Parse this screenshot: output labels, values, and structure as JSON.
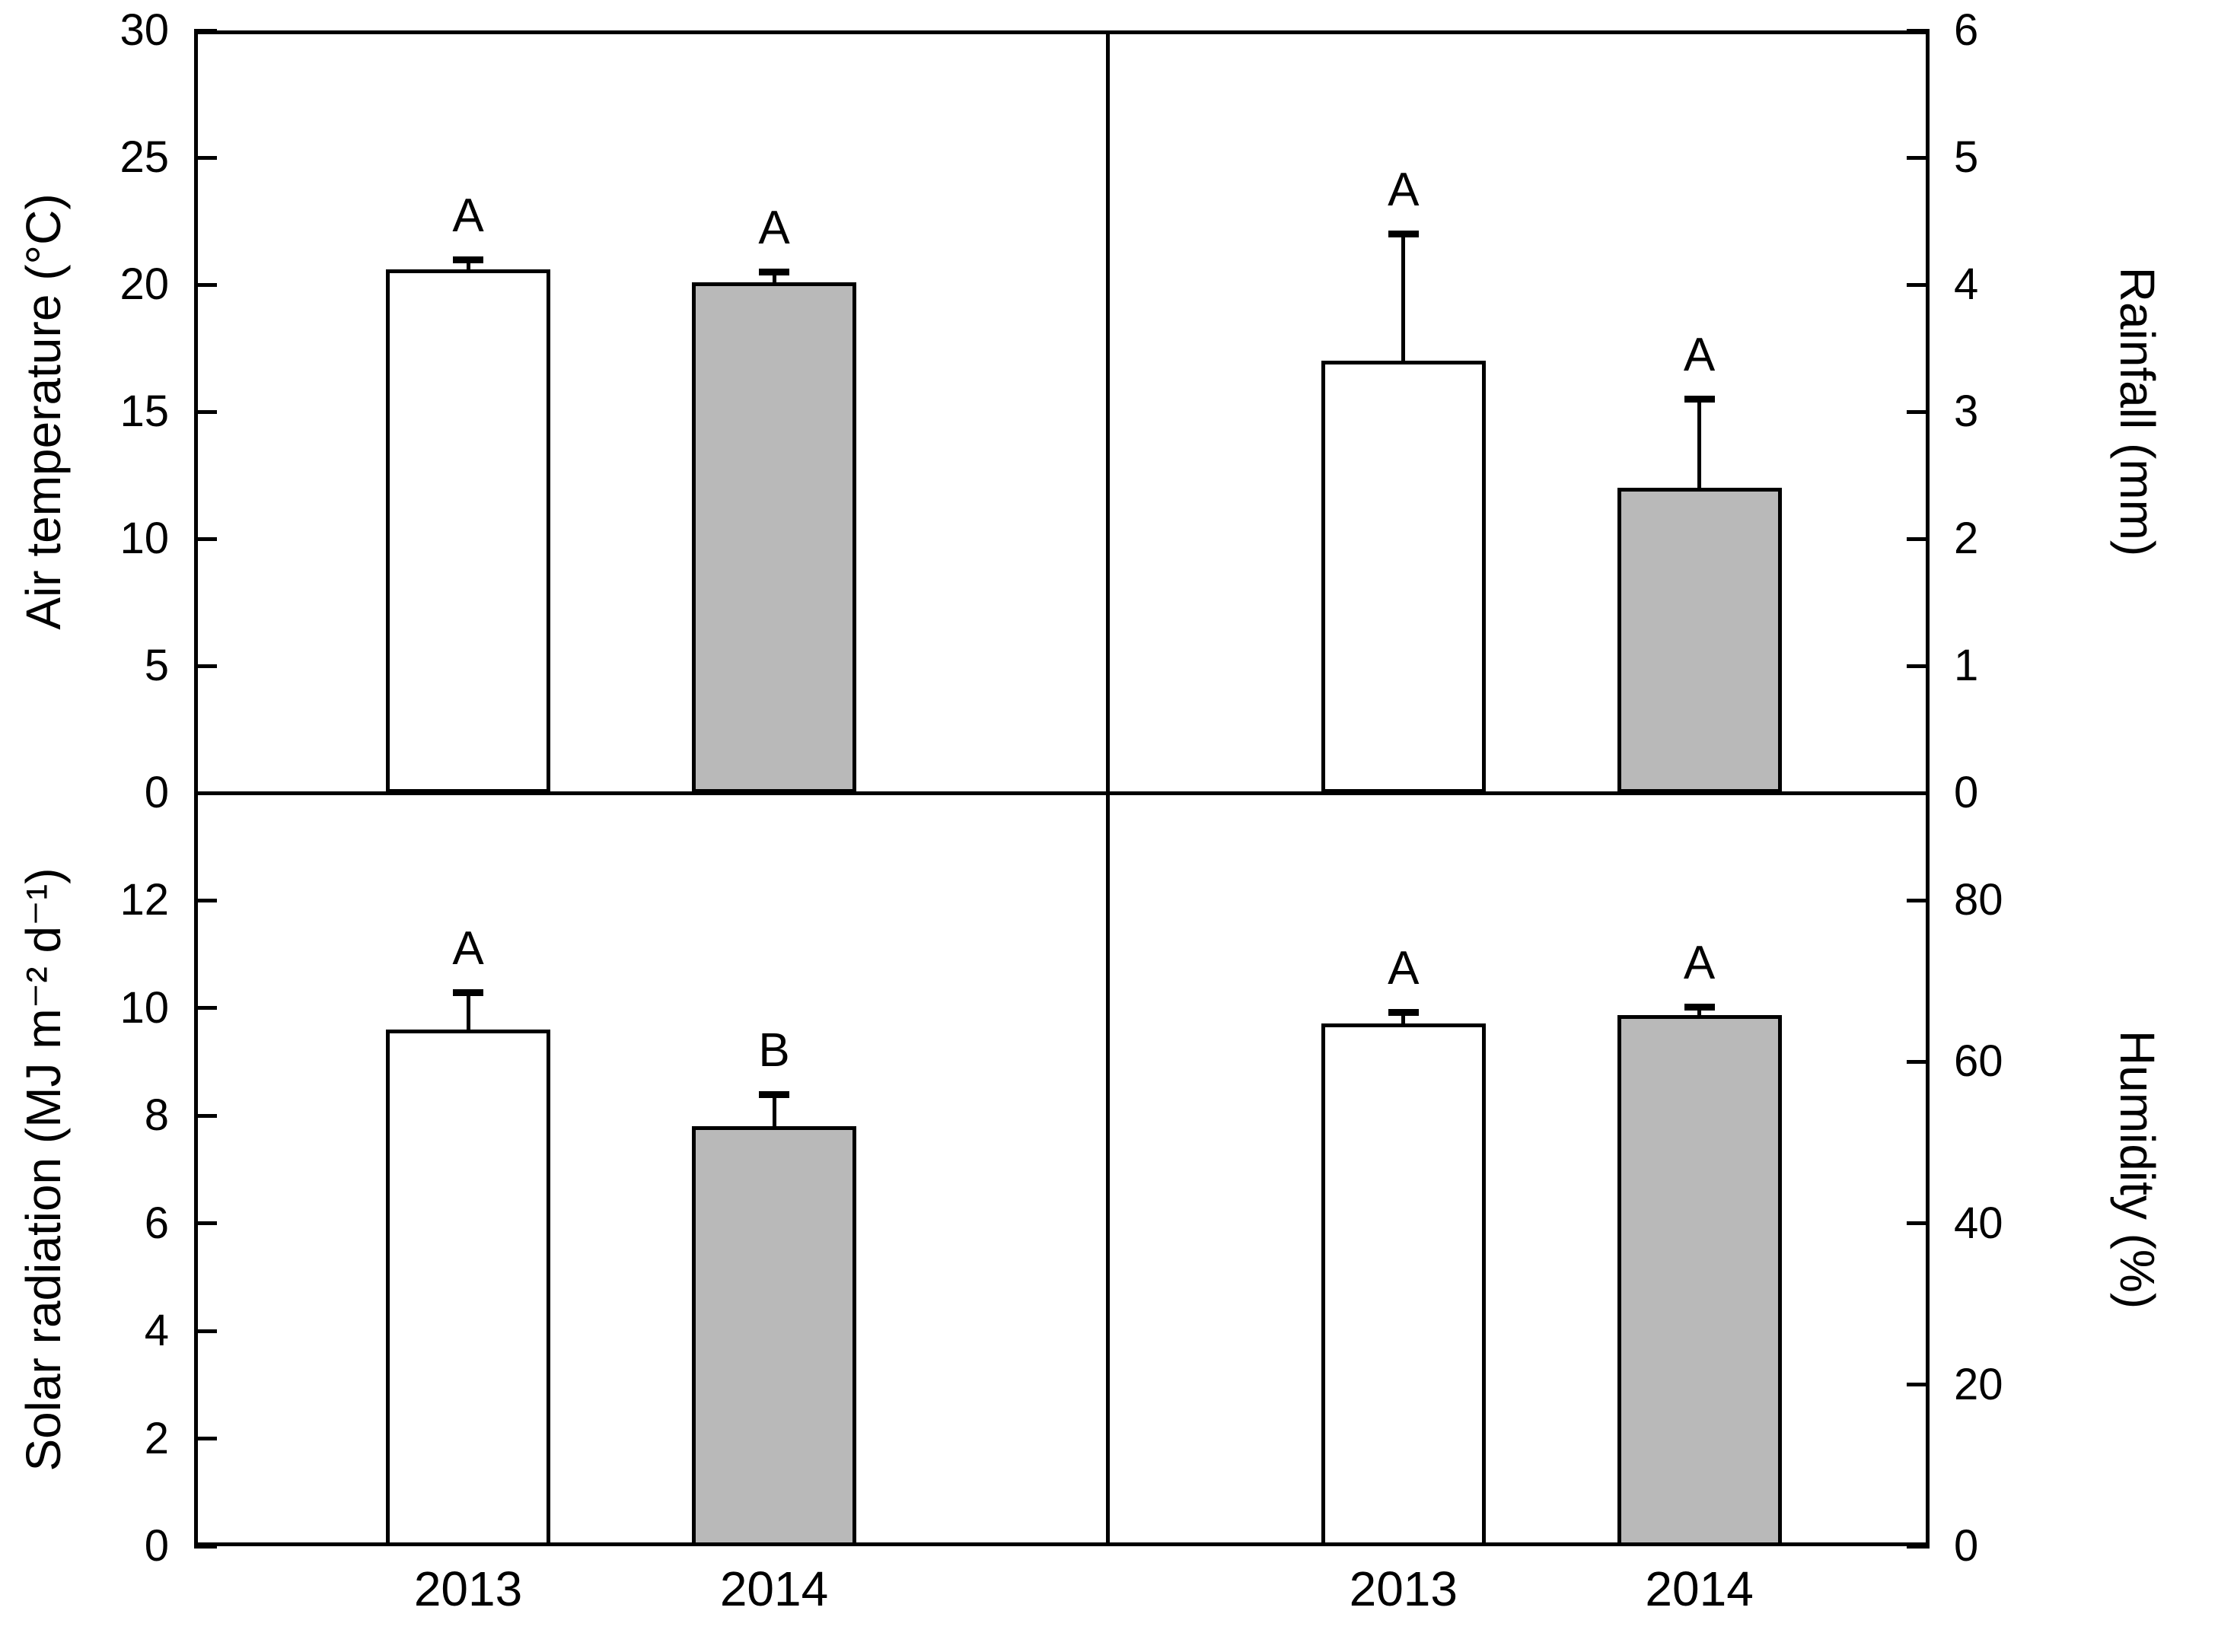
{
  "figure": {
    "background": "#ffffff",
    "line_color": "#000000",
    "series": [
      "2013",
      "2014"
    ],
    "series_fill": {
      "2013": "#ffffff",
      "2014": "#b9b9b9"
    }
  },
  "categories": [
    "2013",
    "2014"
  ],
  "chart_data": [
    {
      "type": "bar",
      "panel": "top-left",
      "ylabel": "Air temperature (°C)",
      "axis_side": "left",
      "ylim": [
        0,
        30
      ],
      "yticks": [
        0,
        5,
        10,
        15,
        20,
        25,
        30
      ],
      "categories": [
        "2013",
        "2014"
      ],
      "values": [
        20.6,
        20.1
      ],
      "error_tops": [
        21.0,
        20.5
      ],
      "sig_letters": [
        "A",
        "A"
      ],
      "bar_fills": [
        "#ffffff",
        "#b9b9b9"
      ],
      "grid": false
    },
    {
      "type": "bar",
      "panel": "top-right",
      "ylabel": "Rainfall (mm)",
      "axis_side": "right",
      "ylim": [
        0,
        6
      ],
      "yticks": [
        0,
        1,
        2,
        3,
        4,
        5,
        6
      ],
      "categories": [
        "2013",
        "2014"
      ],
      "values": [
        3.4,
        2.4
      ],
      "error_tops": [
        4.4,
        3.1
      ],
      "sig_letters": [
        "A",
        "A"
      ],
      "bar_fills": [
        "#ffffff",
        "#b9b9b9"
      ],
      "grid": false
    },
    {
      "type": "bar",
      "panel": "bottom-left",
      "ylabel": "Solar radiation (MJ m⁻² d⁻¹)",
      "axis_side": "left",
      "ylim": [
        0,
        14
      ],
      "yticks": [
        0,
        2,
        4,
        6,
        8,
        10,
        12
      ],
      "categories": [
        "2013",
        "2014"
      ],
      "values": [
        9.6,
        7.8
      ],
      "error_tops": [
        10.3,
        8.4
      ],
      "sig_letters": [
        "A",
        "B"
      ],
      "bar_fills": [
        "#ffffff",
        "#b9b9b9"
      ],
      "grid": false
    },
    {
      "type": "bar",
      "panel": "bottom-right",
      "ylabel": "Humidity (%)",
      "axis_side": "right",
      "ylim": [
        0,
        93.3
      ],
      "yticks": [
        0,
        20,
        40,
        60,
        80
      ],
      "categories": [
        "2013",
        "2014"
      ],
      "values": [
        64.7,
        65.8
      ],
      "error_tops": [
        66.2,
        66.8
      ],
      "sig_letters": [
        "A",
        "A"
      ],
      "bar_fills": [
        "#ffffff",
        "#b9b9b9"
      ],
      "grid": false
    }
  ]
}
